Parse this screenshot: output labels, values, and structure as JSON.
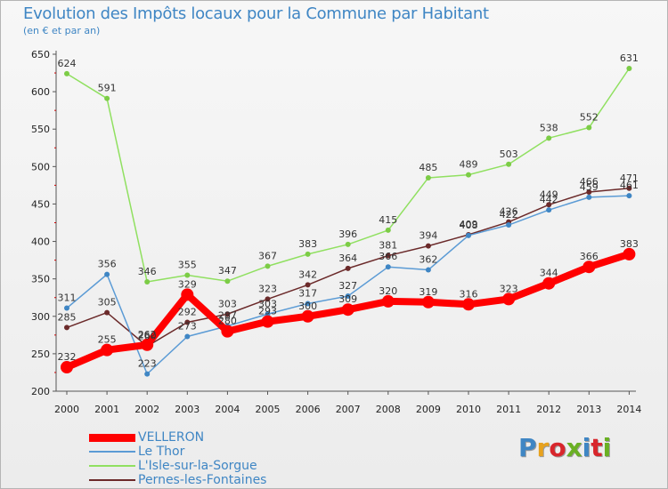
{
  "title": "Evolution des Impôts locaux pour la Commune par Habitant",
  "subtitle": "(en € et par an)",
  "logo": {
    "text": "Proxiti",
    "letter_colors": [
      "#3f86c4",
      "#e8a21d",
      "#d8262c",
      "#6ab023",
      "#3f86c4",
      "#d8262c",
      "#6ab023"
    ]
  },
  "chart_data": {
    "type": "line",
    "title": "Evolution des Impôts locaux pour la Commune par Habitant",
    "subtitle": "(en € et par an)",
    "x": [
      2000,
      2001,
      2002,
      2003,
      2004,
      2005,
      2006,
      2007,
      2008,
      2009,
      2010,
      2011,
      2012,
      2013,
      2014
    ],
    "ylim": [
      200,
      650
    ],
    "yticks": [
      200,
      250,
      300,
      350,
      400,
      450,
      500,
      550,
      600,
      650
    ],
    "grid": false,
    "legend_position": "bottom-left",
    "series": [
      {
        "name": "VELLERON",
        "color": "#ff0000",
        "marker_fill": "#ff0000",
        "emphasis": "thick",
        "values": [
          232,
          255,
          262,
          329,
          280,
          293,
          300,
          309,
          320,
          319,
          316,
          323,
          344,
          366,
          383
        ],
        "labels": [
          "232",
          "255",
          "262",
          "329",
          "280",
          "293",
          "300",
          "309",
          "320",
          "319",
          "316",
          "323",
          "344",
          "366",
          "383"
        ]
      },
      {
        "name": "Le Thor",
        "color": "#5b9bd5",
        "marker_fill": "#3f86c4",
        "emphasis": "thin",
        "values": [
          311,
          356,
          223,
          273,
          287,
          303,
          317,
          327,
          366,
          362,
          408,
          422,
          442,
          459,
          461
        ],
        "labels": [
          "311",
          "356",
          "223",
          "273",
          "287",
          "303",
          "317",
          "327",
          "366",
          "362",
          "408",
          "422",
          "442",
          "459",
          "461"
        ]
      },
      {
        "name": "L'Isle-sur-la-Sorgue",
        "color": "#90e060",
        "marker_fill": "#7ccc46",
        "emphasis": "thin",
        "values": [
          624,
          591,
          346,
          355,
          347,
          367,
          383,
          396,
          415,
          485,
          489,
          503,
          538,
          552,
          631
        ],
        "labels": [
          "624",
          "591",
          "346",
          "355",
          "347",
          "367",
          "383",
          "396",
          "415",
          "485",
          "489",
          "503",
          "538",
          "552",
          "631"
        ]
      },
      {
        "name": "Pernes-les-Fontaines",
        "color": "#6b2a2a",
        "marker_fill": "#6b2a2a",
        "emphasis": "thin",
        "values": [
          285,
          305,
          260,
          292,
          303,
          323,
          342,
          364,
          381,
          394,
          409,
          426,
          449,
          466,
          471
        ],
        "labels": [
          "285",
          "305",
          "260",
          "292",
          "303",
          "323",
          "342",
          "364",
          "381",
          "394",
          "409",
          "426",
          "449",
          "466",
          "471"
        ]
      }
    ]
  }
}
